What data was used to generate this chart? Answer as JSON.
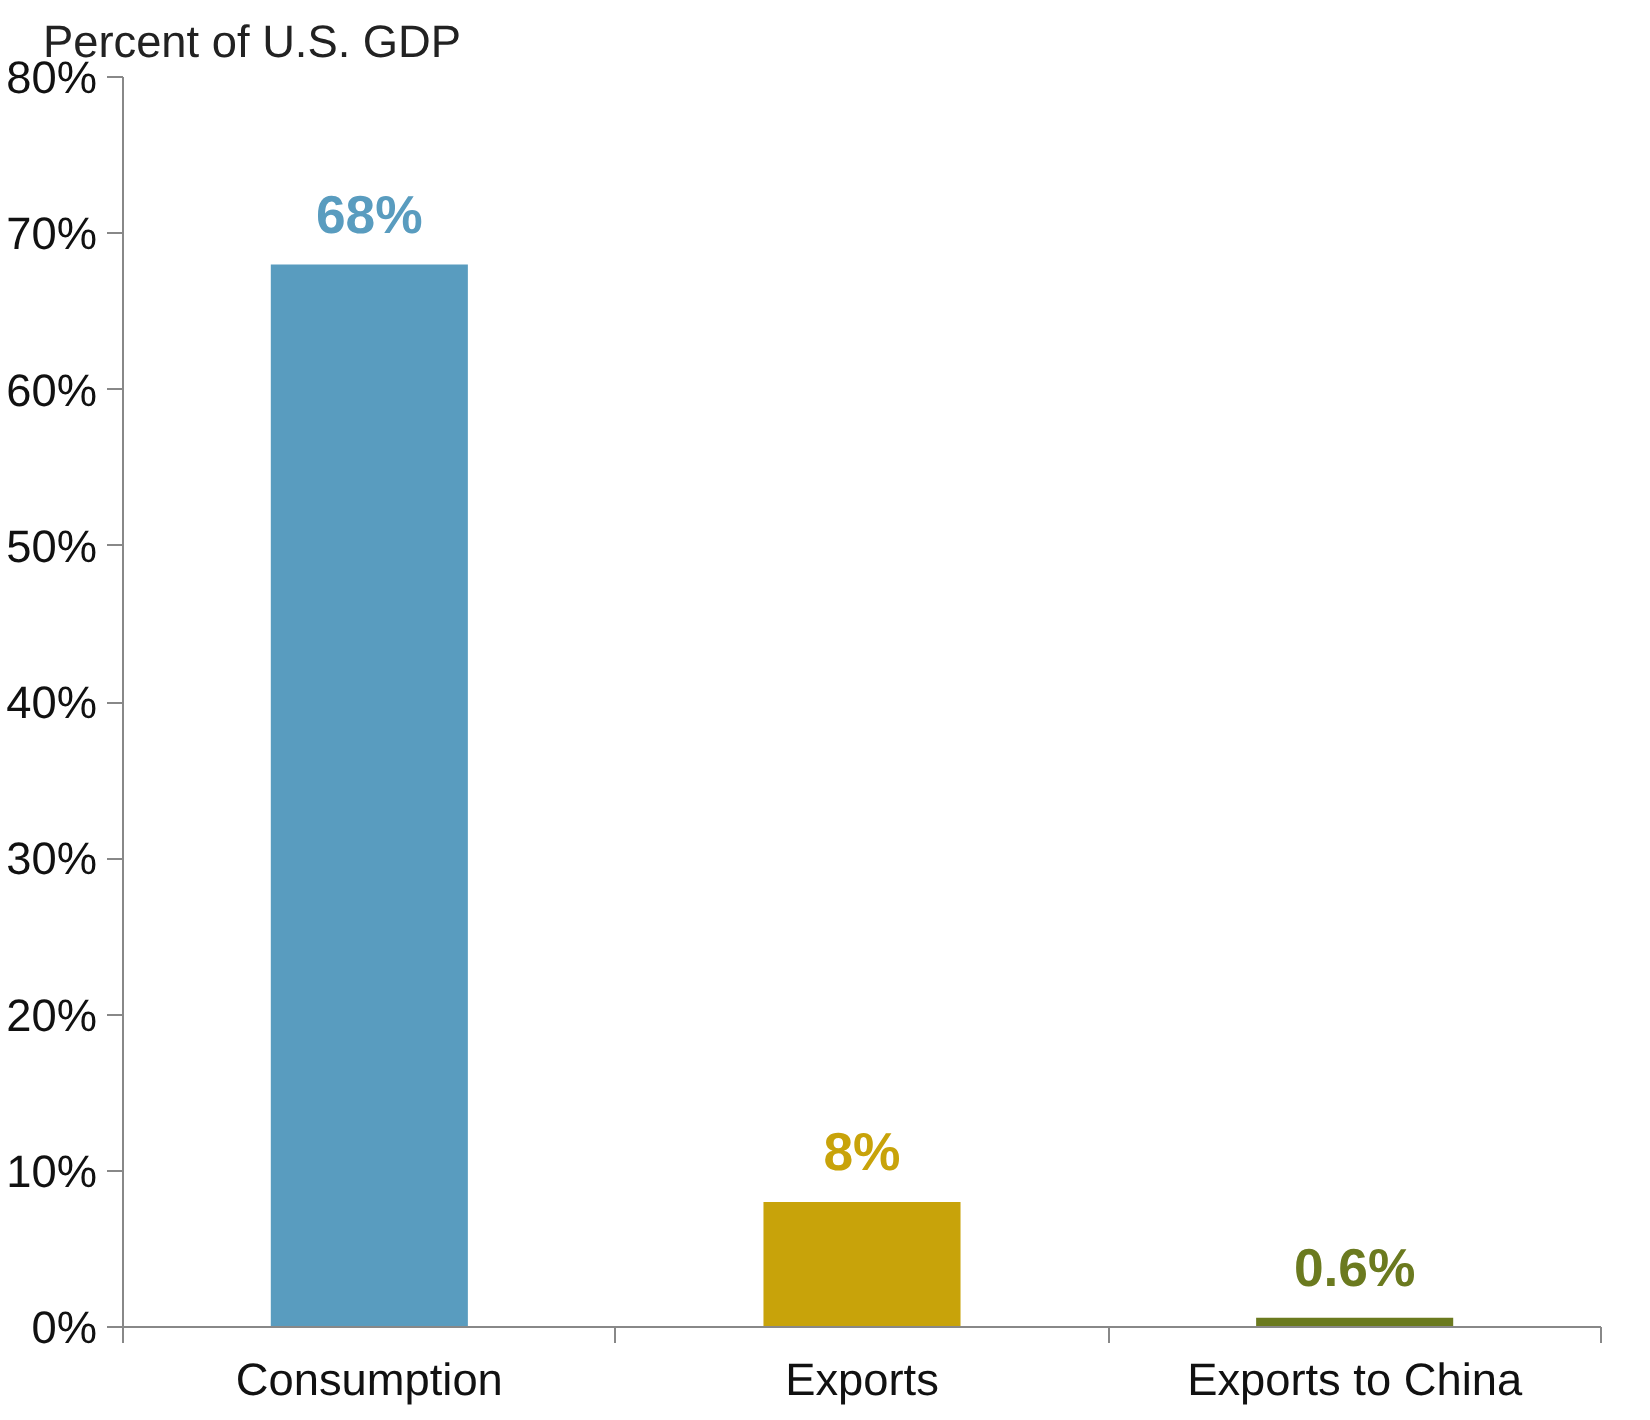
{
  "chart_data": {
    "type": "bar",
    "ylabel": "Percent of U.S. GDP",
    "categories": [
      "Consumption",
      "Exports",
      "Exports to China"
    ],
    "values": [
      68,
      8,
      0.6
    ],
    "colors": [
      "#599cbf",
      "#c8a30a",
      "#6b7a1f"
    ],
    "value_labels": [
      "68%",
      "8%",
      "0.6%"
    ],
    "ylim": [
      0,
      80
    ],
    "yticks": [
      {
        "value": 0,
        "label": "0%"
      },
      {
        "value": 10,
        "label": "10%"
      },
      {
        "value": 20,
        "label": "20%"
      },
      {
        "value": 30,
        "label": "30%"
      },
      {
        "value": 40,
        "label": "40%"
      },
      {
        "value": 50,
        "label": "50%"
      },
      {
        "value": 60,
        "label": "60%"
      },
      {
        "value": 70,
        "label": "70%"
      },
      {
        "value": 80,
        "label": "80%"
      }
    ],
    "grid": false
  }
}
